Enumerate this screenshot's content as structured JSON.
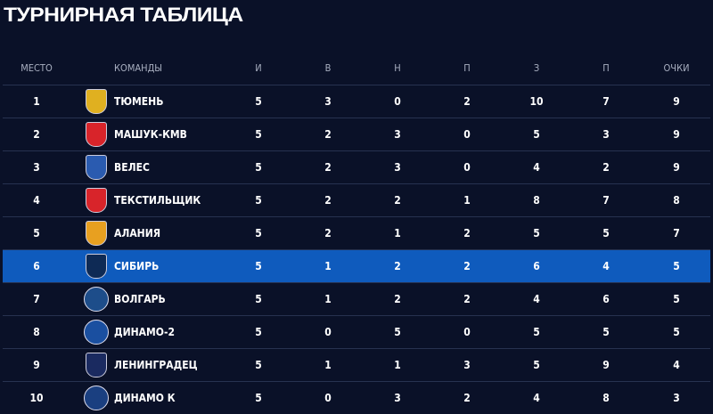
{
  "title": "ТУРНИРНАЯ ТАБЛИЦА",
  "columns": [
    "МЕСТО",
    "КОМАНДЫ",
    "И",
    "В",
    "Н",
    "П",
    "З",
    "П",
    "ОЧКИ"
  ],
  "highlight_color": "#0f5bbd",
  "rows": [
    {
      "place": "1",
      "team": "ТЮМЕНЬ",
      "games": "5",
      "wins": "3",
      "draws": "0",
      "losses": "2",
      "scored": "10",
      "conceded": "7",
      "points": "9",
      "logo_color": "#e0b020"
    },
    {
      "place": "2",
      "team": "МАШУК-КМВ",
      "games": "5",
      "wins": "2",
      "draws": "3",
      "losses": "0",
      "scored": "5",
      "conceded": "3",
      "points": "9",
      "logo_color": "#d8242a"
    },
    {
      "place": "3",
      "team": "ВЕЛЕС",
      "games": "5",
      "wins": "2",
      "draws": "3",
      "losses": "0",
      "scored": "4",
      "conceded": "2",
      "points": "9",
      "logo_color": "#2a5bb0"
    },
    {
      "place": "4",
      "team": "ТЕКСТИЛЬЩИК",
      "games": "5",
      "wins": "2",
      "draws": "2",
      "losses": "1",
      "scored": "8",
      "conceded": "7",
      "points": "8",
      "logo_color": "#d8242a"
    },
    {
      "place": "5",
      "team": "АЛАНИЯ",
      "games": "5",
      "wins": "2",
      "draws": "1",
      "losses": "2",
      "scored": "5",
      "conceded": "5",
      "points": "7",
      "logo_color": "#e8a020"
    },
    {
      "place": "6",
      "team": "СИБИРЬ",
      "games": "5",
      "wins": "1",
      "draws": "2",
      "losses": "2",
      "scored": "6",
      "conceded": "4",
      "points": "5",
      "logo_color": "#0e2a55"
    },
    {
      "place": "7",
      "team": "ВОЛГАРЬ",
      "games": "5",
      "wins": "1",
      "draws": "2",
      "losses": "2",
      "scored": "4",
      "conceded": "6",
      "points": "5",
      "logo_color": "#1d4d8a"
    },
    {
      "place": "8",
      "team": "ДИНАМО-2",
      "games": "5",
      "wins": "0",
      "draws": "5",
      "losses": "0",
      "scored": "5",
      "conceded": "5",
      "points": "5",
      "logo_color": "#1a4fa0"
    },
    {
      "place": "9",
      "team": "ЛЕНИНГРАДЕЦ",
      "games": "5",
      "wins": "1",
      "draws": "1",
      "losses": "3",
      "scored": "5",
      "conceded": "9",
      "points": "4",
      "logo_color": "#1a2a60"
    },
    {
      "place": "10",
      "team": "ДИНАМО К",
      "games": "5",
      "wins": "0",
      "draws": "3",
      "losses": "2",
      "scored": "4",
      "conceded": "8",
      "points": "3",
      "logo_color": "#1a3f80"
    }
  ]
}
